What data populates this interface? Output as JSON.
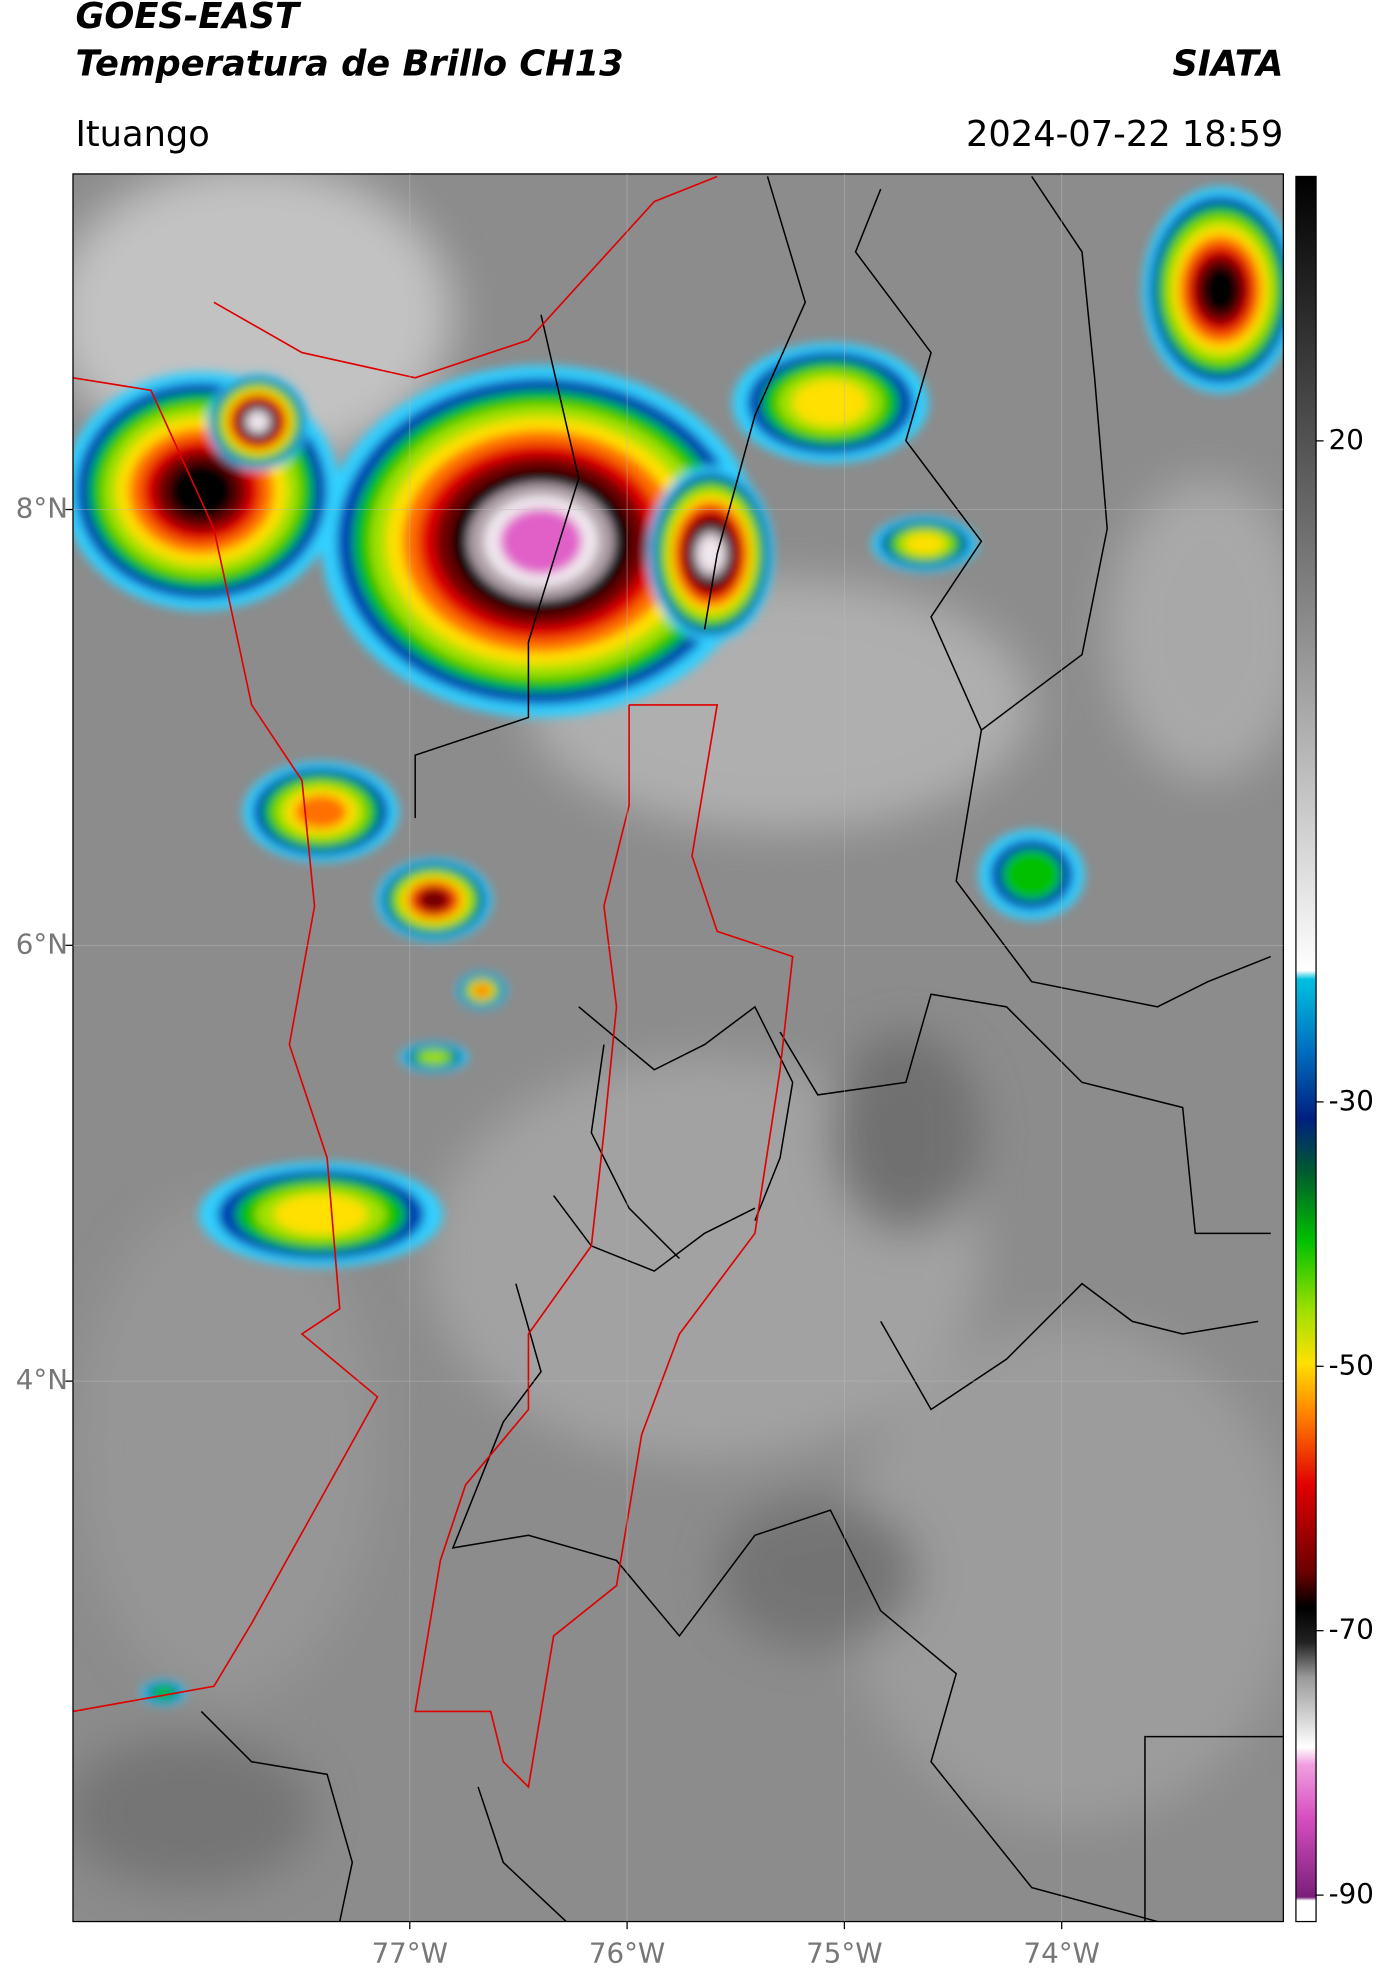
{
  "header": {
    "satellite": "GOES-EAST",
    "product": "Temperatura de Brillo CH13",
    "source": "SIATA",
    "location": "Ituango",
    "datetime": "2024-07-22 18:59"
  },
  "map": {
    "xlim": [
      -78.55,
      -72.98
    ],
    "ylim": [
      1.52,
      9.54
    ],
    "xticks": [
      {
        "value": -77,
        "label": "77°W"
      },
      {
        "value": -76,
        "label": "76°W"
      },
      {
        "value": -75,
        "label": "75°W"
      },
      {
        "value": -74,
        "label": "74°W"
      }
    ],
    "yticks": [
      {
        "value": 8,
        "label": "8°N"
      },
      {
        "value": 6,
        "label": "6°N"
      },
      {
        "value": 4,
        "label": "4°N"
      }
    ],
    "grid": true
  },
  "colorbar": {
    "lim": [
      -92,
      40
    ],
    "ticks": [
      20,
      -30,
      -50,
      -70,
      -90
    ]
  }
}
